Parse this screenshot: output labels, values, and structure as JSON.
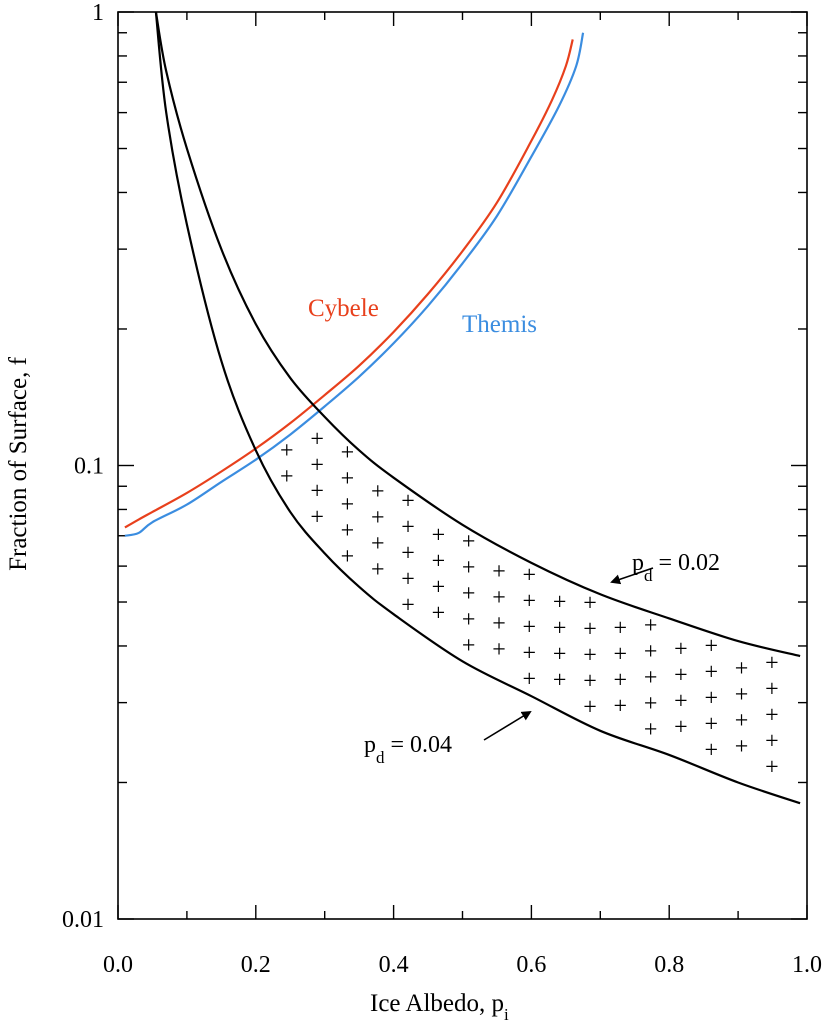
{
  "chart_data": {
    "type": "line",
    "xlabel": "Ice Albedo, p",
    "xlabel_sub": "i",
    "ylabel": "Fraction of Surface, f",
    "xlim": [
      0,
      1
    ],
    "ylim": [
      0.01,
      1
    ],
    "y_scale": "log",
    "grid": false,
    "x_ticks": [
      0,
      0.2,
      0.4,
      0.6,
      0.8,
      1.0
    ],
    "x_tick_labels": [
      "0.0",
      "0.2",
      "0.4",
      "0.6",
      "0.8",
      "1.0"
    ],
    "y_ticks": [
      0.01,
      0.1,
      1
    ],
    "y_tick_labels": [
      "0.01",
      "0.1",
      "1"
    ],
    "series": [
      {
        "name": "Cybele",
        "color": "#e8401c",
        "x": [
          0.01,
          0.03,
          0.05,
          0.1,
          0.15,
          0.2,
          0.25,
          0.3,
          0.35,
          0.4,
          0.45,
          0.5,
          0.55,
          0.6,
          0.63,
          0.65,
          0.66
        ],
        "y": [
          0.073,
          0.076,
          0.079,
          0.087,
          0.097,
          0.109,
          0.124,
          0.143,
          0.166,
          0.197,
          0.239,
          0.297,
          0.38,
          0.52,
          0.64,
          0.76,
          0.87
        ]
      },
      {
        "name": "Themis",
        "color": "#3b8de0",
        "x": [
          0.01,
          0.03,
          0.05,
          0.1,
          0.15,
          0.2,
          0.25,
          0.3,
          0.35,
          0.4,
          0.45,
          0.5,
          0.55,
          0.6,
          0.64,
          0.665,
          0.675
        ],
        "y": [
          0.07,
          0.071,
          0.075,
          0.082,
          0.092,
          0.103,
          0.117,
          0.135,
          0.157,
          0.186,
          0.225,
          0.279,
          0.355,
          0.48,
          0.62,
          0.76,
          0.9
        ]
      },
      {
        "name": "p_d = 0.02",
        "color": "#000000",
        "x": [
          0.055,
          0.07,
          0.1,
          0.15,
          0.2,
          0.25,
          0.3,
          0.35,
          0.4,
          0.5,
          0.6,
          0.7,
          0.8,
          0.9,
          0.99
        ],
        "y": [
          1.0,
          0.74,
          0.5,
          0.3,
          0.205,
          0.156,
          0.128,
          0.108,
          0.094,
          0.074,
          0.061,
          0.052,
          0.046,
          0.041,
          0.038
        ]
      },
      {
        "name": "p_d = 0.04",
        "color": "#000000",
        "x": [
          0.055,
          0.07,
          0.1,
          0.15,
          0.2,
          0.25,
          0.3,
          0.35,
          0.4,
          0.5,
          0.6,
          0.7,
          0.8,
          0.9,
          0.99
        ],
        "y": [
          1.0,
          0.6,
          0.34,
          0.17,
          0.108,
          0.079,
          0.064,
          0.054,
          0.047,
          0.037,
          0.031,
          0.026,
          0.023,
          0.02,
          0.018
        ]
      }
    ],
    "shaded_region_marker": "+",
    "annotations": [
      {
        "text": "p",
        "sub": "d",
        "value_text": " = 0.02",
        "arrow_to": [
          0.71,
          0.058
        ]
      },
      {
        "text": "p",
        "sub": "d",
        "value_text": " = 0.04",
        "arrow_to": [
          0.59,
          0.03
        ]
      }
    ],
    "series_labels": {
      "cybele": "Cybele",
      "themis": "Themis"
    }
  }
}
